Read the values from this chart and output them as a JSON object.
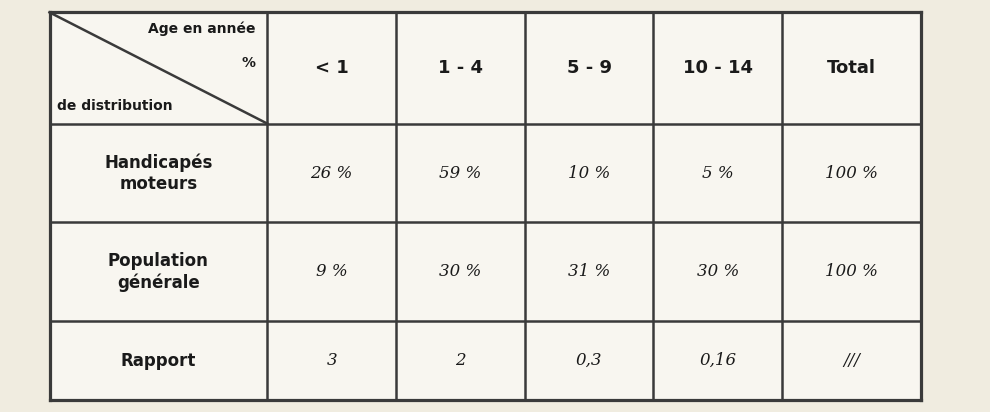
{
  "figsize": [
    9.9,
    4.12
  ],
  "dpi": 100,
  "background_color": "#f0ece0",
  "cell_color": "#f8f6f0",
  "border_color": "#3a3a3a",
  "text_color": "#1a1a1a",
  "header_row": [
    "< 1",
    "1 - 4",
    "5 - 9",
    "10 - 14",
    "Total"
  ],
  "header_top_left_line1": "Age en année",
  "header_top_left_line2": "%",
  "header_top_left_line3": "de distribution",
  "rows": [
    {
      "label": "Handicapés\nmoteurs",
      "values": [
        "26 %",
        "59 %",
        "10 %",
        "5 %",
        "100 %"
      ]
    },
    {
      "label": "Population\ngénérale",
      "values": [
        "9 %",
        "30 %",
        "31 %",
        "30 %",
        "100 %"
      ]
    },
    {
      "label": "Rapport",
      "values": [
        "3",
        "2",
        "0,3",
        "0,16",
        "///"
      ]
    }
  ],
  "font_size_header": 13,
  "font_size_body": 12,
  "font_size_topleft": 10,
  "line_width": 1.8
}
